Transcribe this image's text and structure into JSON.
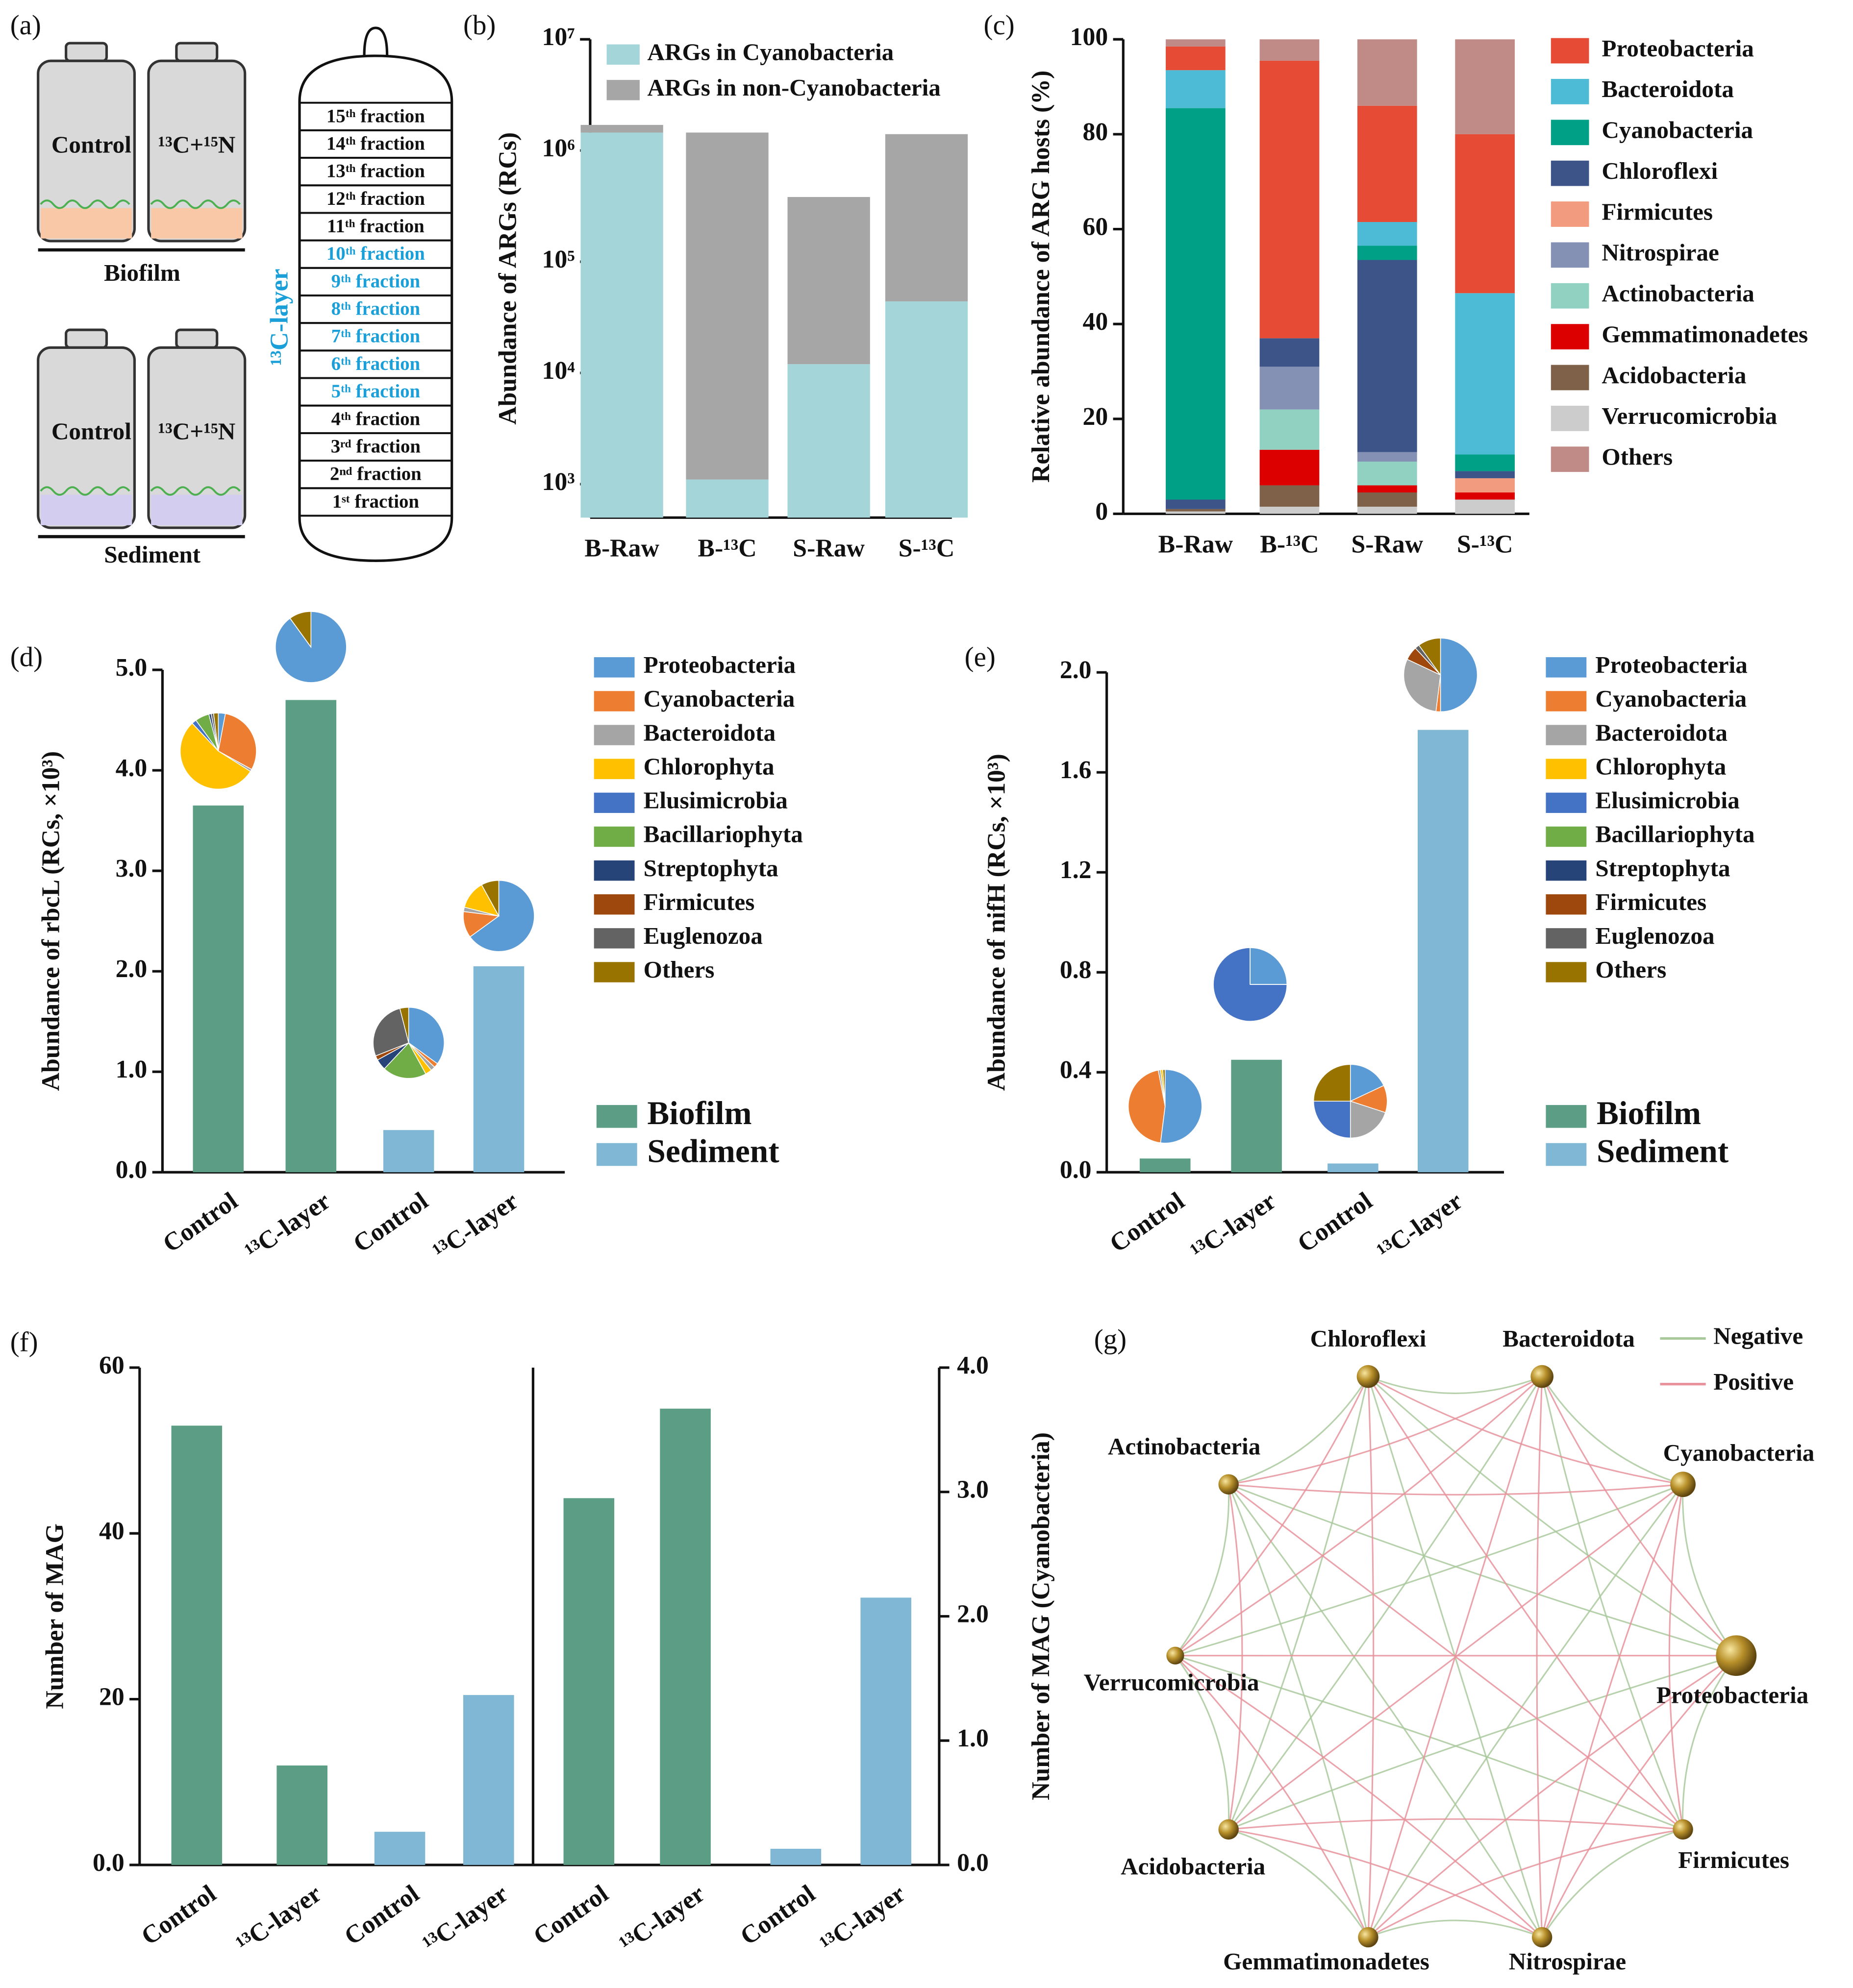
{
  "diagram_a": {
    "label": "(a)",
    "bottles": {
      "control": "Control",
      "treated": "¹³C+¹⁵N"
    },
    "groups": [
      "Biofilm",
      "Sediment"
    ],
    "layer_label": "¹³C-layer",
    "fractions": [
      {
        "label": "15ᵗʰ fraction",
        "color": "#111111"
      },
      {
        "label": "14ᵗʰ fraction",
        "color": "#111111"
      },
      {
        "label": "13ᵗʰ fraction",
        "color": "#111111"
      },
      {
        "label": "12ᵗʰ fraction",
        "color": "#111111"
      },
      {
        "label": "11ᵗʰ fraction",
        "color": "#111111"
      },
      {
        "label": "10ᵗʰ fraction",
        "color": "#1a9fd8"
      },
      {
        "label": "9ᵗʰ fraction",
        "color": "#1a9fd8"
      },
      {
        "label": "8ᵗʰ fraction",
        "color": "#1a9fd8"
      },
      {
        "label": "7ᵗʰ fraction",
        "color": "#1a9fd8"
      },
      {
        "label": "6ᵗʰ fraction",
        "color": "#1a9fd8"
      },
      {
        "label": "5ᵗʰ fraction",
        "color": "#1a9fd8"
      },
      {
        "label": "4ᵗʰ fraction",
        "color": "#111111"
      },
      {
        "label": "3ʳᵈ fraction",
        "color": "#111111"
      },
      {
        "label": "2ⁿᵈ fraction",
        "color": "#111111"
      },
      {
        "label": "1ˢᵗ fraction",
        "color": "#111111"
      }
    ]
  },
  "chart_data": [
    {
      "panel": "(b)",
      "type": "bar",
      "stacked": true,
      "log_scale": true,
      "ylabel": "Abundance of ARGs (RCs)",
      "categories": [
        "B-Raw",
        "B-¹³C",
        "S-Raw",
        "S-¹³C"
      ],
      "series": [
        {
          "name": "ARGs in Cyanobacteria",
          "color": "#a4d6d9",
          "values": [
            1450000,
            1100,
            12000,
            44000
          ]
        },
        {
          "name": "ARGs in non-Cyanobacteria",
          "color": "#a6a6a6",
          "values": [
            250000,
            1450000,
            370000,
            1360000
          ]
        }
      ],
      "ylim": [
        500,
        10000000
      ],
      "yticks": [
        {
          "value": 1000,
          "label": "10³"
        },
        {
          "value": 10000,
          "label": "10⁴"
        },
        {
          "value": 100000,
          "label": "10⁵"
        },
        {
          "value": 1000000,
          "label": "10⁶"
        },
        {
          "value": 10000000,
          "label": "10⁷"
        }
      ]
    },
    {
      "panel": "(c)",
      "type": "bar",
      "stacked": true,
      "ylabel": "Relative abundance of ARG hosts (%)",
      "categories": [
        "B-Raw",
        "B-¹³C",
        "S-Raw",
        "S-¹³C"
      ],
      "series": [
        {
          "name": "Proteobacteria",
          "color": "#e64b35",
          "values": [
            5,
            58.5,
            24.5,
            33.5
          ]
        },
        {
          "name": "Bacteroidota",
          "color": "#4dbbd5",
          "values": [
            8,
            0,
            5,
            34
          ]
        },
        {
          "name": "Cyanobacteria",
          "color": "#00a087",
          "values": [
            82.5,
            0,
            3,
            3.5
          ]
        },
        {
          "name": "Chloroflexi",
          "color": "#3c5488",
          "values": [
            2,
            6,
            40.5,
            1.5
          ]
        },
        {
          "name": "Firmicutes",
          "color": "#f39b7f",
          "values": [
            0,
            0,
            0,
            3
          ]
        },
        {
          "name": "Nitrospirae",
          "color": "#8491b4",
          "values": [
            0,
            9,
            2,
            0
          ]
        },
        {
          "name": "Actinobacteria",
          "color": "#91d1c2",
          "values": [
            0,
            8.5,
            5,
            0
          ]
        },
        {
          "name": "Gemmatimonadetes",
          "color": "#dc0000",
          "values": [
            0,
            7.5,
            1.5,
            1.5
          ]
        },
        {
          "name": "Acidobacteria",
          "color": "#7e6148",
          "values": [
            0.5,
            4.5,
            3,
            0
          ]
        },
        {
          "name": "Verrucomicrobia",
          "color": "#cccccc",
          "values": [
            0.5,
            1.5,
            1.5,
            3
          ]
        },
        {
          "name": "Others",
          "color": "#c08a86",
          "values": [
            1.5,
            4.5,
            14,
            20
          ]
        }
      ],
      "ylim": [
        0,
        100
      ],
      "yticks": [
        0,
        20,
        40,
        60,
        80,
        100
      ]
    },
    {
      "panel": "(d)",
      "type": "bar_pie",
      "ylabel": "Abundance of rbcL (RCs, ×10³)",
      "categories": [
        "Control",
        "¹³C-layer",
        "Control",
        "¹³C-layer"
      ],
      "series": [
        {
          "name": "Biofilm",
          "color": "#5c9e85",
          "values": [
            3.65,
            4.7,
            null,
            null
          ]
        },
        {
          "name": "Sediment",
          "color": "#7fb7d4",
          "values": [
            null,
            null,
            0.42,
            2.05
          ]
        }
      ],
      "ylim": [
        0,
        5
      ],
      "yticks": [
        {
          "value": 0,
          "label": "0.0"
        },
        {
          "value": 1,
          "label": "1.0"
        },
        {
          "value": 2,
          "label": "2.0"
        },
        {
          "value": 3,
          "label": "3.0"
        },
        {
          "value": 4,
          "label": "4.0"
        },
        {
          "value": 5,
          "label": "5.0"
        }
      ],
      "pie_series": [
        {
          "name": "Proteobacteria",
          "color": "#5b9bd5"
        },
        {
          "name": "Cyanobacteria",
          "color": "#ed7d31"
        },
        {
          "name": "Bacteroidota",
          "color": "#a5a5a5"
        },
        {
          "name": "Chlorophyta",
          "color": "#ffc000"
        },
        {
          "name": "Elusimicrobia",
          "color": "#4472c4"
        },
        {
          "name": "Bacillariophyta",
          "color": "#70ad47"
        },
        {
          "name": "Streptophyta",
          "color": "#264478"
        },
        {
          "name": "Firmicutes",
          "color": "#9e480e"
        },
        {
          "name": "Euglenozoa",
          "color": "#636363"
        },
        {
          "name": "Others",
          "color": "#997300"
        }
      ],
      "pie_values": [
        [
          3,
          30,
          1,
          54,
          2,
          6,
          1,
          0,
          1,
          2
        ],
        [
          90,
          0,
          0,
          0,
          0,
          0,
          0,
          0,
          0,
          10
        ],
        [
          35,
          2,
          2,
          3,
          0,
          20,
          5,
          2,
          27,
          4
        ],
        [
          65,
          12,
          2,
          13,
          0,
          0,
          0,
          0,
          0,
          8
        ]
      ]
    },
    {
      "panel": "(e)",
      "type": "bar_pie",
      "ylabel": "Abundance of nifH (RCs, ×10³)",
      "categories": [
        "Control",
        "¹³C-layer",
        "Control",
        "¹³C-layer"
      ],
      "series": [
        {
          "name": "Biofilm",
          "color": "#5c9e85",
          "values": [
            0.055,
            0.45,
            null,
            null
          ]
        },
        {
          "name": "Sediment",
          "color": "#7fb7d4",
          "values": [
            null,
            null,
            0.035,
            1.77
          ]
        }
      ],
      "ylim": [
        0,
        2
      ],
      "yticks": [
        {
          "value": 0,
          "label": "0.0"
        },
        {
          "value": 0.4,
          "label": "0.4"
        },
        {
          "value": 0.8,
          "label": "0.8"
        },
        {
          "value": 1.2,
          "label": "1.2"
        },
        {
          "value": 1.6,
          "label": "1.6"
        },
        {
          "value": 2,
          "label": "2.0"
        }
      ],
      "pie_series": [
        {
          "name": "Proteobacteria",
          "color": "#5b9bd5"
        },
        {
          "name": "Cyanobacteria",
          "color": "#ed7d31"
        },
        {
          "name": "Bacteroidota",
          "color": "#a5a5a5"
        },
        {
          "name": "Chlorophyta",
          "color": "#ffc000"
        },
        {
          "name": "Elusimicrobia",
          "color": "#4472c4"
        },
        {
          "name": "Bacillariophyta",
          "color": "#70ad47"
        },
        {
          "name": "Streptophyta",
          "color": "#264478"
        },
        {
          "name": "Firmicutes",
          "color": "#9e480e"
        },
        {
          "name": "Euglenozoa",
          "color": "#636363"
        },
        {
          "name": "Others",
          "color": "#997300"
        }
      ],
      "pie_values": [
        [
          52,
          45,
          1,
          1,
          0,
          0,
          0,
          0,
          0,
          1
        ],
        [
          25,
          0,
          0,
          0,
          75,
          0,
          0,
          0,
          0,
          0
        ],
        [
          18,
          12,
          20,
          0,
          25,
          0,
          0,
          0,
          0,
          25
        ],
        [
          50,
          2,
          30,
          0,
          0,
          0,
          0,
          6,
          2,
          10
        ]
      ]
    },
    {
      "panel": "(f)",
      "type": "bar",
      "ylabel": "Number of MAG",
      "categories": [
        "Control",
        "¹³C-layer",
        "Control",
        "¹³C-layer"
      ],
      "series": [
        {
          "name": "Biofilm",
          "color": "#5c9e85",
          "values": [
            53,
            12,
            null,
            null
          ]
        },
        {
          "name": "Sediment",
          "color": "#7fb7d4",
          "values": [
            null,
            null,
            4,
            20.5
          ]
        }
      ],
      "ylim": [
        0,
        60
      ],
      "yticks": [
        {
          "value": 0,
          "label": "0.0"
        },
        20,
        40,
        60
      ]
    },
    {
      "type": "bar",
      "y2label": "Number of MAG (Cyanobacteria)",
      "categories": [
        "Control",
        "¹³C-layer",
        "Control",
        "¹³C-layer"
      ],
      "series": [
        {
          "name": "Biofilm",
          "color": "#5c9e85",
          "axis": "y2",
          "values": [
            2.95,
            3.67,
            null,
            null
          ]
        },
        {
          "name": "Sediment",
          "color": "#7fb7d4",
          "axis": "y2",
          "values": [
            null,
            null,
            0.13,
            2.15
          ]
        }
      ],
      "y2lim": [
        0,
        4
      ],
      "y2ticks": [
        {
          "value": 0,
          "label": "0.0"
        },
        {
          "value": 1,
          "label": "1.0"
        },
        {
          "value": 2,
          "label": "2.0"
        },
        {
          "value": 3,
          "label": "3.0"
        },
        {
          "value": 4,
          "label": "4.0"
        }
      ]
    }
  ],
  "network_g": {
    "label": "(g)",
    "nodes": [
      "Chloroflexi",
      "Bacteroidota",
      "Cyanobacteria",
      "Proteobacteria",
      "Firmicutes",
      "Nitrospirae",
      "Gemmatimonadetes",
      "Acidobacteria",
      "Verrucomicrobia",
      "Actinobacteria"
    ],
    "legend": [
      {
        "name": "Negative",
        "color": "#a9c99c"
      },
      {
        "name": "Positive",
        "color": "#e8939c"
      }
    ],
    "edges": [
      [
        [
          0,
          1
        ],
        [
          1,
          2
        ],
        [
          2,
          3
        ],
        [
          3,
          4
        ],
        [
          4,
          5
        ],
        [
          5,
          6
        ],
        [
          6,
          7
        ],
        [
          7,
          8
        ],
        [
          8,
          9
        ],
        [
          9,
          0
        ],
        [
          0,
          3
        ],
        [
          0,
          5
        ],
        [
          1,
          4
        ],
        [
          1,
          7
        ],
        [
          2,
          6
        ],
        [
          2,
          8
        ],
        [
          3,
          7
        ],
        [
          4,
          8
        ],
        [
          5,
          9
        ],
        [
          6,
          9
        ],
        [
          0,
          7
        ],
        [
          3,
          9
        ]
      ],
      [
        [
          0,
          2
        ],
        [
          0,
          4
        ],
        [
          0,
          6
        ],
        [
          0,
          8
        ],
        [
          1,
          3
        ],
        [
          1,
          5
        ],
        [
          1,
          6
        ],
        [
          1,
          8
        ],
        [
          1,
          9
        ],
        [
          2,
          4
        ],
        [
          2,
          5
        ],
        [
          2,
          7
        ],
        [
          2,
          9
        ],
        [
          3,
          5
        ],
        [
          3,
          6
        ],
        [
          3,
          8
        ],
        [
          4,
          6
        ],
        [
          4,
          7
        ],
        [
          4,
          9
        ],
        [
          5,
          7
        ],
        [
          5,
          8
        ],
        [
          6,
          8
        ],
        [
          7,
          9
        ]
      ]
    ]
  }
}
